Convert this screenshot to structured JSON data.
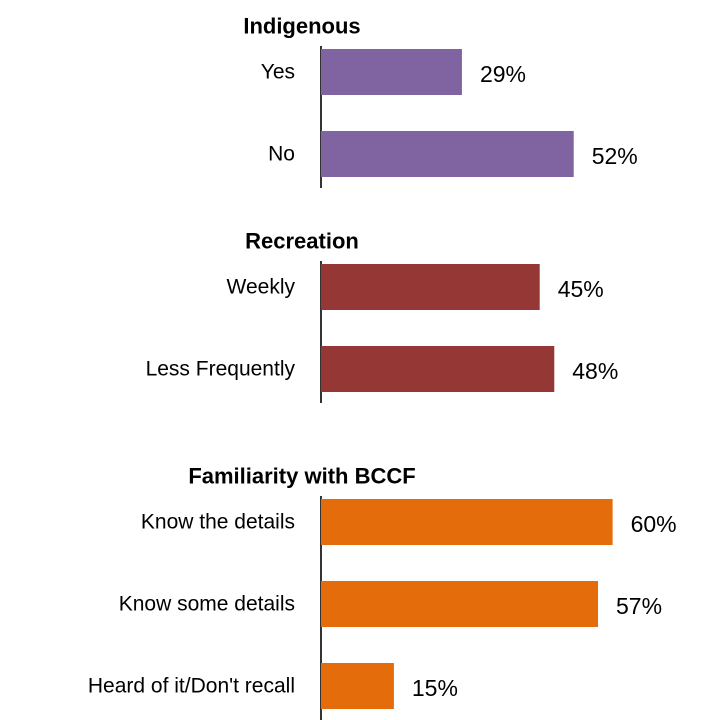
{
  "chart_data": [
    {
      "type": "bar",
      "orientation": "horizontal",
      "title": "Indigenous",
      "categories": [
        "Yes",
        "No"
      ],
      "values": [
        29,
        52
      ],
      "value_suffix": "%",
      "color": "#8064A2",
      "xlim": [
        0,
        100
      ]
    },
    {
      "type": "bar",
      "orientation": "horizontal",
      "title": "Recreation",
      "categories": [
        "Weekly",
        "Less Frequently"
      ],
      "values": [
        45,
        48
      ],
      "value_suffix": "%",
      "color": "#953735",
      "xlim": [
        0,
        100
      ]
    },
    {
      "type": "bar",
      "orientation": "horizontal",
      "title": "Familiarity with BCCF",
      "categories": [
        "Know the details",
        "Know some details",
        "Heard of it/Don't recall"
      ],
      "values": [
        60,
        57,
        15
      ],
      "value_suffix": "%",
      "color": "#E46C0A",
      "xlim": [
        0,
        100
      ]
    }
  ]
}
